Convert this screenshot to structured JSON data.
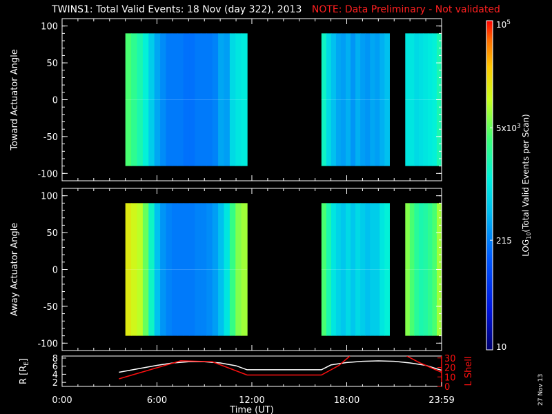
{
  "title": "TWINS1: Total Valid Events: 18 Nov (day 322), 2013",
  "note": "NOTE: Data Preliminary - Not validated",
  "date_stamp": "27 Nov 13",
  "colors": {
    "background": "#000000",
    "axis": "#ffffff",
    "note": "#ff2020",
    "r_line": "#ffffff",
    "lshell_line": "#ff1010"
  },
  "chart_data": [
    {
      "type": "heatmap",
      "panel": "toward",
      "ylabel": "Toward Actuator Angle",
      "xlim": [
        0,
        24
      ],
      "ylim": [
        -110,
        110
      ],
      "yticks": [
        100,
        50,
        0,
        -50,
        -100
      ],
      "ytick_labels": [
        "100",
        "50",
        "0",
        "-50",
        "-100"
      ],
      "data_blocks": [
        {
          "start_hr": 4.0,
          "end_hr": 11.7,
          "angle_range": [
            -90,
            90
          ],
          "columns_log10": [
            3.6,
            3.45,
            3.3,
            3.1,
            2.8,
            2.55,
            2.4,
            2.3,
            2.3,
            2.3,
            2.25,
            2.25,
            2.3,
            2.3,
            2.3,
            2.35,
            2.55,
            2.5,
            2.9,
            3.0,
            3.05
          ]
        },
        {
          "start_hr": 16.4,
          "end_hr": 20.7,
          "angle_range": [
            -90,
            90
          ],
          "columns_log10": [
            3.2,
            2.9,
            2.7,
            2.55,
            2.5,
            2.6,
            2.45,
            2.6,
            2.5,
            2.45,
            2.55,
            2.5,
            2.6,
            2.7
          ]
        },
        {
          "start_hr": 21.7,
          "end_hr": 23.98,
          "angle_range": [
            -90,
            90
          ],
          "columns_log10": [
            3.0,
            3.0,
            2.9,
            2.95,
            3.0,
            3.05,
            3.1,
            3.3
          ]
        }
      ]
    },
    {
      "type": "heatmap",
      "panel": "away",
      "ylabel": "Away Actuator Angle",
      "xlim": [
        0,
        24
      ],
      "ylim": [
        -110,
        110
      ],
      "yticks": [
        100,
        50,
        0,
        -50,
        -100
      ],
      "ytick_labels": [
        "100",
        "50",
        "0",
        "-50",
        "-100"
      ],
      "data_blocks": [
        {
          "start_hr": 4.0,
          "end_hr": 11.7,
          "angle_range": [
            -90,
            90
          ],
          "columns_log10": [
            4.2,
            4.1,
            4.0,
            3.7,
            3.2,
            2.7,
            2.45,
            2.35,
            2.3,
            2.3,
            2.3,
            2.3,
            2.35,
            2.35,
            2.4,
            2.5,
            2.7,
            3.0,
            3.5,
            3.8,
            3.9
          ]
        },
        {
          "start_hr": 16.4,
          "end_hr": 20.7,
          "angle_range": [
            -90,
            90
          ],
          "columns_log10": [
            3.6,
            3.3,
            3.0,
            2.85,
            2.75,
            2.9,
            2.75,
            2.9,
            2.8,
            2.7,
            2.8,
            2.8,
            3.0,
            3.1
          ]
        },
        {
          "start_hr": 21.7,
          "end_hr": 23.98,
          "angle_range": [
            -90,
            90
          ],
          "columns_log10": [
            3.8,
            3.6,
            3.4,
            3.3,
            3.35,
            3.45,
            3.6,
            3.9
          ]
        }
      ]
    },
    {
      "type": "line",
      "panel": "orbit",
      "xlabel": "Time (UT)",
      "xlim": [
        0,
        24
      ],
      "xticks": [
        0,
        6,
        12,
        18,
        24
      ],
      "xtick_labels": [
        "0:00",
        "6:00",
        "12:00",
        "18:00",
        "23:59"
      ],
      "left_axis": {
        "label": "R [R",
        "label_sub": "E",
        "label_end": "]",
        "ylim": [
          1,
          8.5
        ],
        "yticks": [
          2,
          4,
          6,
          8
        ],
        "ytick_labels": [
          "2",
          "4",
          "6",
          "8"
        ]
      },
      "right_axis": {
        "label": "L Shell",
        "ylim": [
          0,
          32
        ],
        "yticks": [
          0,
          10,
          20,
          30
        ],
        "ytick_labels": [
          "0",
          "10",
          "20",
          "30"
        ]
      },
      "series": [
        {
          "axis": "left",
          "x": [
            3.6,
            5,
            6,
            7,
            8,
            9,
            10,
            11,
            11.7,
            13,
            15,
            16.4,
            17,
            18,
            19,
            20,
            21,
            22,
            23,
            23.98
          ],
          "y": [
            4.5,
            5.5,
            6.2,
            6.8,
            7.1,
            7.1,
            6.8,
            6.1,
            5.1,
            5.1,
            5.1,
            5.1,
            6.3,
            6.9,
            7.2,
            7.3,
            7.2,
            6.8,
            6.2,
            5.0
          ]
        },
        {
          "axis": "right",
          "x": [
            3.6,
            7.5,
            9.5,
            11.7,
            16.4,
            17.5,
            18.2
          ],
          "y": [
            8,
            27,
            26,
            12,
            12,
            22,
            32
          ]
        },
        {
          "axis": "right",
          "x": [
            21.8,
            22.6,
            23.98
          ],
          "y": [
            32,
            25,
            15
          ]
        }
      ]
    }
  ],
  "colorbar": {
    "label": "LOG10(Total Valid Events per Scan)",
    "label_prefix": "LOG",
    "label_sub": "10",
    "label_rest": "(Total Valid Events per Scan)",
    "log_range": [
      1,
      5
    ],
    "ticks": [
      {
        "value_log10": 5,
        "base": "10",
        "exp": "5"
      },
      {
        "value_log10": 3.699,
        "base": "5x10",
        "exp": "3"
      },
      {
        "value_log10": 2.332,
        "base": "215",
        "exp": ""
      },
      {
        "value_log10": 1,
        "base": "10",
        "exp": ""
      }
    ]
  }
}
